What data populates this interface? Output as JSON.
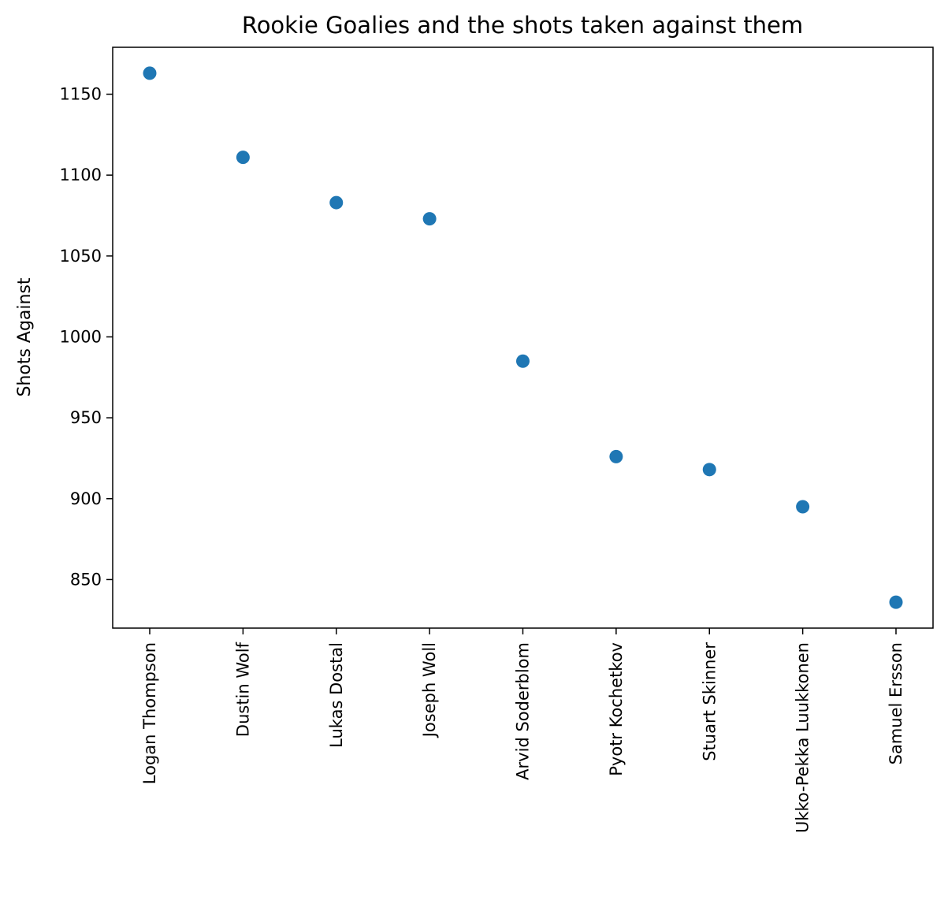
{
  "chart_data": {
    "type": "scatter",
    "title": "Rookie Goalies and the shots taken against them",
    "xlabel": "",
    "ylabel": "Shots Against",
    "categories": [
      "Logan Thompson",
      "Dustin Wolf",
      "Lukas Dostal",
      "Joseph Woll",
      "Arvid Soderblom",
      "Pyotr Kochetkov",
      "Stuart Skinner",
      "Ukko-Pekka Luukkonen",
      "Samuel Ersson"
    ],
    "values": [
      1163,
      1111,
      1083,
      1073,
      985,
      926,
      918,
      895,
      836
    ],
    "ylim": [
      820,
      1179
    ],
    "yticks": [
      850,
      900,
      950,
      1000,
      1050,
      1100,
      1150
    ],
    "grid": false,
    "colors": {
      "point": "#1f77b4",
      "axes": "#000000"
    }
  }
}
